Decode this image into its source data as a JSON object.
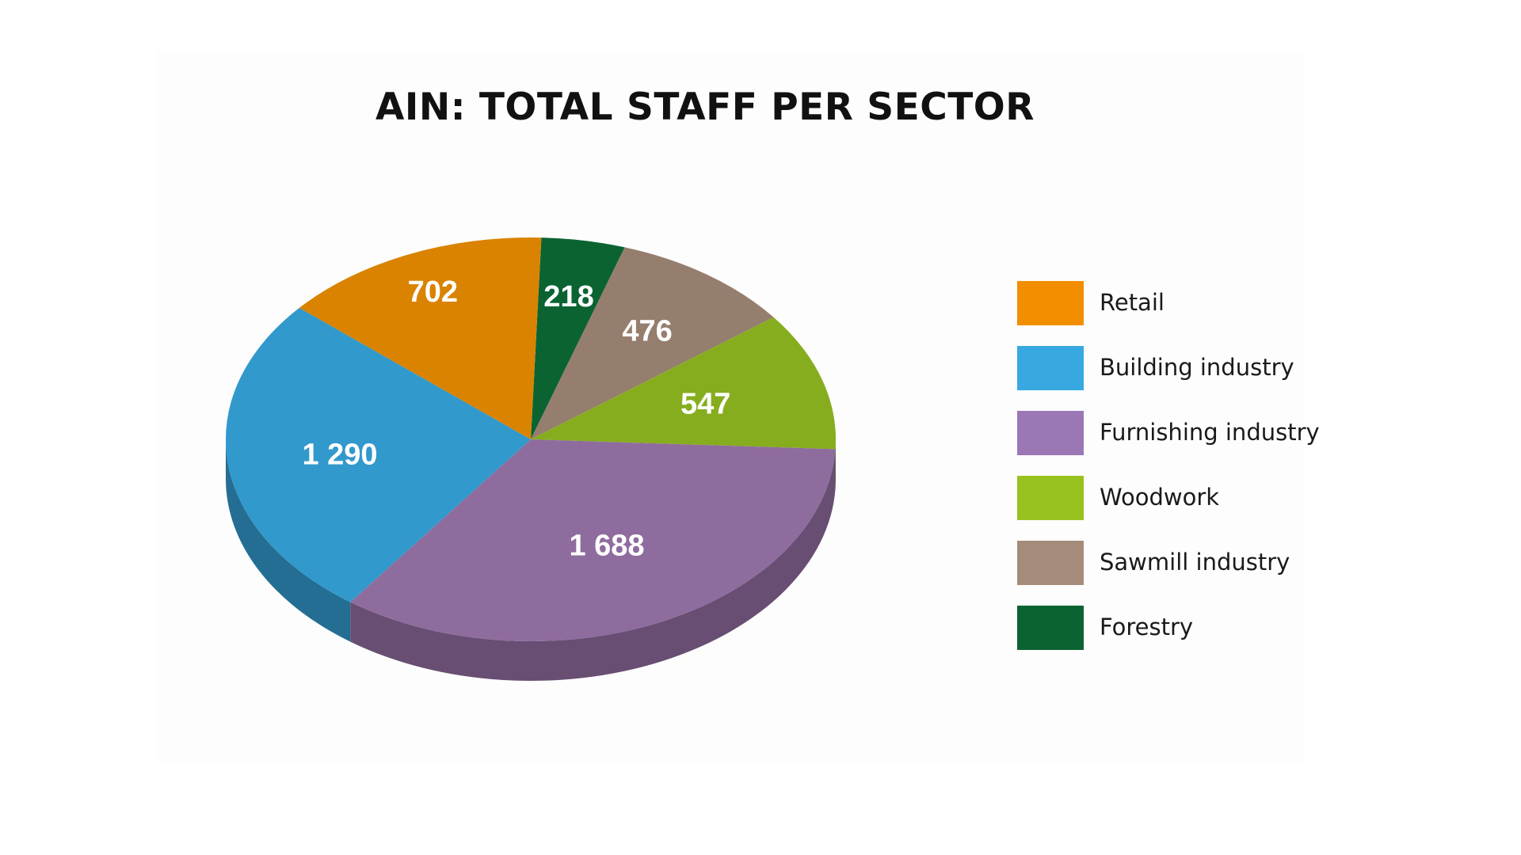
{
  "chart_data": {
    "type": "pie",
    "title": "AIN: TOTAL STAFF PER SECTOR",
    "style": "3d",
    "categories": [
      "Retail",
      "Building industry",
      "Furnishing industry",
      "Woodwork",
      "Sawmill industry",
      "Forestry"
    ],
    "value_labels": [
      "702",
      "1 290",
      "1 688",
      "547",
      "476",
      "218"
    ],
    "values": [
      702,
      1290,
      1688,
      547,
      476,
      218
    ],
    "colors": [
      "#d98300",
      "#3299cc",
      "#8f6c9e",
      "#86ad1e",
      "#967e6e",
      "#0b6332"
    ],
    "legend": {
      "position": "right",
      "colors": [
        "#f28e00",
        "#37a9e0",
        "#9b77b5",
        "#98c21f",
        "#a58b7a",
        "#0b6332"
      ]
    }
  }
}
